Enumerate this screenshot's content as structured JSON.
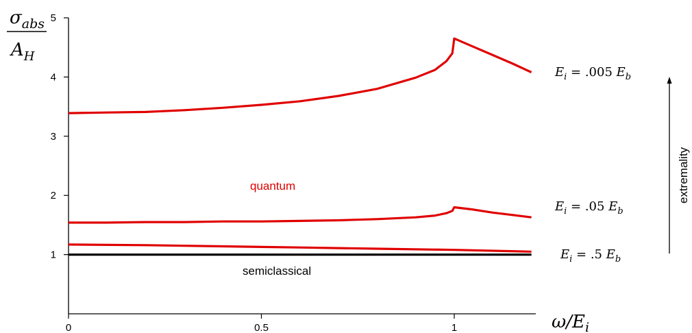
{
  "chart_data": {
    "type": "line",
    "ylabel": {
      "numerator": "σ",
      "numerator_sub": "abs",
      "denominator": "A",
      "denominator_sub": "H"
    },
    "xlabel": {
      "main": "ω/E",
      "sub": "i"
    },
    "xlim": [
      0,
      1.2
    ],
    "ylim": [
      0,
      5
    ],
    "x_ticks": [
      0,
      0.5,
      1
    ],
    "x_tick_labels": [
      "0",
      "0.5",
      "1"
    ],
    "y_ticks": [
      1,
      2,
      3,
      4,
      5
    ],
    "y_tick_labels": [
      "1",
      "2",
      "3",
      "4",
      "5"
    ],
    "grid": false,
    "series": [
      {
        "color": "#e00000",
        "x": [
          0,
          0.1,
          0.2,
          0.3,
          0.4,
          0.5,
          0.6,
          0.7,
          0.8,
          0.9,
          0.95,
          0.98,
          0.995,
          1.0,
          1.05,
          1.1,
          1.15,
          1.2
        ],
        "values": [
          3.39,
          3.4,
          3.41,
          3.44,
          3.48,
          3.53,
          3.59,
          3.68,
          3.8,
          3.99,
          4.12,
          4.27,
          4.4,
          4.65,
          4.51,
          4.37,
          4.23,
          4.08
        ]
      },
      {
        "color": "#e00000",
        "x": [
          0,
          0.1,
          0.2,
          0.3,
          0.4,
          0.5,
          0.6,
          0.7,
          0.8,
          0.9,
          0.95,
          0.98,
          0.995,
          1.0,
          1.05,
          1.1,
          1.15,
          1.2
        ],
        "values": [
          1.54,
          1.54,
          1.55,
          1.55,
          1.56,
          1.56,
          1.57,
          1.58,
          1.6,
          1.63,
          1.66,
          1.7,
          1.74,
          1.8,
          1.76,
          1.71,
          1.67,
          1.63
        ]
      },
      {
        "color": "#e00000",
        "x": [
          0,
          0.2,
          0.4,
          0.6,
          0.8,
          1.0,
          1.2
        ],
        "values": [
          1.17,
          1.16,
          1.14,
          1.12,
          1.1,
          1.08,
          1.05
        ]
      },
      {
        "color": "#000000",
        "x": [
          0,
          1.2
        ],
        "values": [
          1.0,
          1.0
        ]
      }
    ],
    "annotations": {
      "quantum": "quantum",
      "semiclassical": "semiclassical",
      "extremality": "extremality",
      "curve_labels": [
        {
          "sym": "E",
          "sub": "i",
          "mid": " = .005 ",
          "sym2": "E",
          "sub2": "b",
          "y": 4.07
        },
        {
          "sym": "E",
          "sub": "i",
          "mid": " = .05 ",
          "sym2": "E",
          "sub2": "b",
          "y": 1.72
        },
        {
          "sym": "E",
          "sub": "i",
          "mid": " = .5 ",
          "sym2": "E",
          "sub2": "b",
          "y": 0.97
        }
      ]
    },
    "colors": {
      "quantum": "#e00000",
      "semiclassical": "#000000"
    }
  }
}
